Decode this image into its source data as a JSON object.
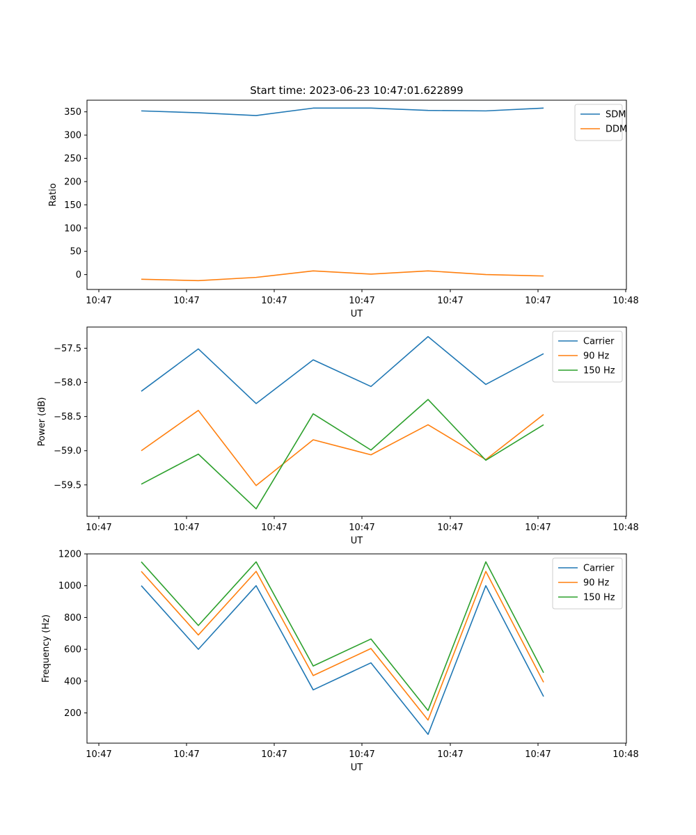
{
  "chart_data": [
    {
      "type": "line",
      "title": "Start time: 2023-06-23 10:47:01.622899",
      "xlabel": "UT",
      "ylabel": "Ratio",
      "x_tick_labels": [
        "10:47",
        "10:47",
        "10:47",
        "10:47",
        "10:47",
        "10:47",
        "10:47",
        "10:48"
      ],
      "y_ticks": [
        0,
        50,
        100,
        150,
        200,
        250,
        300,
        350
      ],
      "y_tick_labels": [
        "0",
        "50",
        "100",
        "150",
        "200",
        "250",
        "300",
        "350"
      ],
      "ylim": [
        -32,
        375
      ],
      "legend_position": "upper-right",
      "series": [
        {
          "name": "SDM",
          "color": "#1f77b4",
          "values": [
            352,
            348,
            342,
            358,
            358,
            353,
            352,
            358
          ]
        },
        {
          "name": "DDM",
          "color": "#ff7f0e",
          "values": [
            -10,
            -13,
            -6,
            8,
            1,
            8,
            0,
            -3
          ]
        }
      ]
    },
    {
      "type": "line",
      "title": "",
      "xlabel": "UT",
      "ylabel": "Power (dB)",
      "x_tick_labels": [
        "10:47",
        "10:47",
        "10:47",
        "10:47",
        "10:47",
        "10:47",
        "10:47",
        "10:48"
      ],
      "y_ticks": [
        -59.5,
        -59.0,
        -58.5,
        -58.0,
        -57.5
      ],
      "y_tick_labels": [
        "−59.5",
        "−59.0",
        "−58.5",
        "−58.0",
        "−57.5"
      ],
      "ylim": [
        -59.96,
        -57.19
      ],
      "legend_position": "upper-right",
      "series": [
        {
          "name": "Carrier",
          "color": "#1f77b4",
          "values": [
            -58.13,
            -57.51,
            -58.31,
            -57.67,
            -58.06,
            -57.33,
            -58.03,
            -57.58
          ]
        },
        {
          "name": "90 Hz",
          "color": "#ff7f0e",
          "values": [
            -59.0,
            -58.41,
            -59.51,
            -58.84,
            -59.06,
            -58.62,
            -59.13,
            -58.47
          ]
        },
        {
          "name": "150 Hz",
          "color": "#2ca02c",
          "values": [
            -59.49,
            -59.05,
            -59.85,
            -58.46,
            -58.99,
            -58.25,
            -59.14,
            -58.62
          ]
        }
      ]
    },
    {
      "type": "line",
      "title": "",
      "xlabel": "UT",
      "ylabel": "Frequency (Hz)",
      "x_tick_labels": [
        "10:47",
        "10:47",
        "10:47",
        "10:47",
        "10:47",
        "10:47",
        "10:47",
        "10:48"
      ],
      "y_ticks": [
        200,
        400,
        600,
        800,
        1000,
        1200
      ],
      "y_tick_labels": [
        "200",
        "400",
        "600",
        "800",
        "1000",
        "1200"
      ],
      "ylim": [
        10,
        1200
      ],
      "legend_position": "upper-right",
      "series": [
        {
          "name": "Carrier",
          "color": "#1f77b4",
          "values": [
            1000,
            600,
            1000,
            345,
            515,
            65,
            1000,
            303
          ]
        },
        {
          "name": "90 Hz",
          "color": "#ff7f0e",
          "values": [
            1090,
            690,
            1090,
            435,
            605,
            155,
            1090,
            393
          ]
        },
        {
          "name": "150 Hz",
          "color": "#2ca02c",
          "values": [
            1150,
            750,
            1150,
            495,
            665,
            215,
            1150,
            453
          ]
        }
      ]
    }
  ]
}
